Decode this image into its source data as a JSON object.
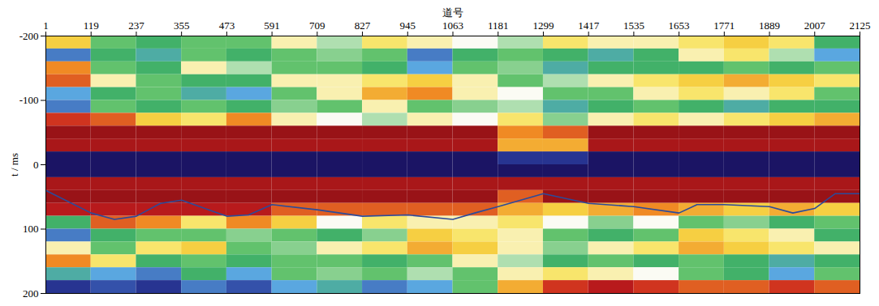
{
  "chart_data": {
    "type": "heatmap",
    "xlabel": "道号",
    "ylabel": "t / ms",
    "xlim": [
      1,
      2125
    ],
    "xticks": [
      1,
      119,
      237,
      355,
      473,
      591,
      709,
      827,
      945,
      1063,
      1181,
      1299,
      1417,
      1535,
      1653,
      1771,
      1889,
      2007,
      2125
    ],
    "ylim": [
      -200,
      200
    ],
    "yticks": [
      -200,
      -100,
      0,
      100,
      200
    ],
    "zlim": [
      -1,
      1
    ],
    "x_bins": [
      1,
      119,
      237,
      355,
      473,
      591,
      709,
      827,
      945,
      1063,
      1181,
      1299,
      1417,
      1535,
      1653,
      1771,
      1889,
      2007,
      2125
    ],
    "t_bins": [
      -200,
      -180,
      -160,
      -140,
      -120,
      -100,
      -80,
      -60,
      -40,
      -20,
      0,
      20,
      40,
      60,
      80,
      100,
      120,
      140,
      160,
      180,
      200
    ],
    "z": [
      [
        0.3,
        -0.2,
        -0.3,
        -0.2,
        -0.2,
        0.1,
        -0.1,
        0.2,
        0.1,
        0.0,
        -0.1,
        0.2,
        0.1,
        0.1,
        0.2,
        0.3,
        0.2,
        -0.3
      ],
      [
        -0.6,
        -0.3,
        -0.4,
        -0.2,
        -0.3,
        -0.2,
        -0.15,
        -0.2,
        -0.6,
        -0.3,
        -0.2,
        -0.3,
        -0.4,
        -0.3,
        0.1,
        0.2,
        -0.1,
        -0.5
      ],
      [
        0.5,
        -0.2,
        -0.3,
        0.1,
        -0.1,
        -0.2,
        -0.2,
        -0.3,
        -0.5,
        -0.2,
        -0.15,
        -0.4,
        -0.3,
        -0.3,
        -0.3,
        -0.2,
        -0.3,
        -0.2
      ],
      [
        0.6,
        0.1,
        -0.2,
        -0.3,
        -0.3,
        0.1,
        0.1,
        0.2,
        0.3,
        0.1,
        -0.2,
        -0.1,
        0.1,
        0.2,
        0.3,
        0.4,
        0.3,
        0.2
      ],
      [
        -0.5,
        -0.3,
        -0.2,
        -0.4,
        -0.5,
        -0.2,
        0.1,
        0.4,
        0.5,
        0.1,
        0.0,
        -0.2,
        -0.2,
        0.1,
        0.2,
        0.1,
        0.2,
        -0.2
      ],
      [
        -0.6,
        -0.2,
        -0.3,
        -0.2,
        -0.3,
        -0.15,
        -0.2,
        0.1,
        -0.2,
        -0.15,
        -0.1,
        -0.4,
        -0.3,
        -0.2,
        -0.3,
        -0.4,
        -0.3,
        -0.3
      ],
      [
        0.7,
        0.6,
        0.3,
        0.2,
        0.5,
        0.1,
        0.0,
        -0.1,
        0.1,
        0.0,
        0.2,
        -0.15,
        0.1,
        0.2,
        0.1,
        0.2,
        0.3,
        0.4
      ],
      [
        0.9,
        0.9,
        0.9,
        0.9,
        0.9,
        0.9,
        0.9,
        0.9,
        0.9,
        0.9,
        0.5,
        0.6,
        0.9,
        0.9,
        0.9,
        0.9,
        0.9,
        0.9
      ],
      [
        0.85,
        0.85,
        0.85,
        0.85,
        0.85,
        0.85,
        0.85,
        0.85,
        0.85,
        0.85,
        0.4,
        0.4,
        0.85,
        0.85,
        0.85,
        0.85,
        0.85,
        0.85
      ],
      [
        -1,
        -1,
        -1,
        -1,
        -1,
        -1,
        -1,
        -1,
        -1,
        -1,
        -0.8,
        -0.8,
        -1,
        -1,
        -1,
        -1,
        -1,
        -1
      ],
      [
        -1,
        -1,
        -1,
        -1,
        -1,
        -1,
        -1,
        -1,
        -1,
        -1,
        -1,
        -1,
        -1,
        -1,
        -1,
        -1,
        -1,
        -1
      ],
      [
        0.85,
        0.85,
        0.85,
        0.85,
        0.85,
        0.85,
        0.85,
        0.85,
        0.85,
        0.85,
        0.85,
        0.85,
        0.85,
        0.85,
        0.85,
        0.85,
        0.85,
        0.85
      ],
      [
        0.9,
        0.9,
        0.9,
        0.9,
        0.9,
        0.9,
        0.9,
        0.9,
        0.9,
        0.9,
        0.6,
        0.9,
        0.9,
        0.9,
        0.9,
        0.9,
        0.9,
        0.9
      ],
      [
        0.8,
        0.8,
        0.8,
        0.8,
        0.8,
        0.6,
        0.6,
        0.6,
        0.6,
        0.6,
        0.4,
        0.3,
        0.4,
        0.5,
        0.4,
        0.3,
        0.4,
        0.3
      ],
      [
        -0.3,
        0.6,
        0.5,
        0.2,
        0.5,
        0.3,
        0.0,
        0.2,
        0.1,
        0.1,
        0.2,
        0.0,
        -0.15,
        0.0,
        -0.2,
        -0.15,
        -0.3,
        -0.2
      ],
      [
        -0.6,
        -0.3,
        -0.2,
        -0.2,
        -0.15,
        -0.2,
        -0.3,
        -0.15,
        0.3,
        0.2,
        0.1,
        -0.2,
        -0.3,
        -0.2,
        0.3,
        0.2,
        0.1,
        -0.3
      ],
      [
        0.1,
        -0.2,
        0.2,
        0.3,
        -0.2,
        -0.15,
        0.1,
        0.2,
        0.4,
        0.3,
        0.1,
        -0.15,
        0.1,
        0.2,
        0.4,
        0.3,
        0.2,
        0.1
      ],
      [
        0.5,
        0.2,
        -0.3,
        -0.2,
        -0.3,
        -0.2,
        -0.2,
        -0.3,
        -0.2,
        0.1,
        -0.1,
        -0.3,
        -0.2,
        -0.3,
        -0.2,
        -0.3,
        -0.4,
        -0.3
      ],
      [
        -0.4,
        -0.5,
        -0.6,
        -0.3,
        -0.5,
        -0.2,
        -0.15,
        -0.2,
        -0.1,
        -0.2,
        0.1,
        0.2,
        0.1,
        0.0,
        -0.2,
        -0.3,
        -0.5,
        -0.2
      ],
      [
        -0.8,
        -0.7,
        -0.8,
        -0.6,
        -0.7,
        -0.5,
        -0.4,
        -0.6,
        -0.5,
        -0.2,
        0.4,
        0.7,
        0.8,
        0.7,
        0.6,
        0.6,
        0.7,
        0.6
      ]
    ],
    "line": {
      "color": "#2b4b9b",
      "x": [
        1,
        119,
        180,
        237,
        300,
        355,
        473,
        530,
        591,
        709,
        827,
        945,
        1063,
        1120,
        1181,
        1299,
        1417,
        1535,
        1653,
        1700,
        1771,
        1889,
        1950,
        2007,
        2060,
        2125
      ],
      "values": [
        40,
        75,
        85,
        80,
        60,
        55,
        80,
        78,
        62,
        70,
        80,
        78,
        85,
        75,
        65,
        45,
        60,
        65,
        75,
        62,
        62,
        65,
        75,
        68,
        45,
        45
      ]
    }
  }
}
